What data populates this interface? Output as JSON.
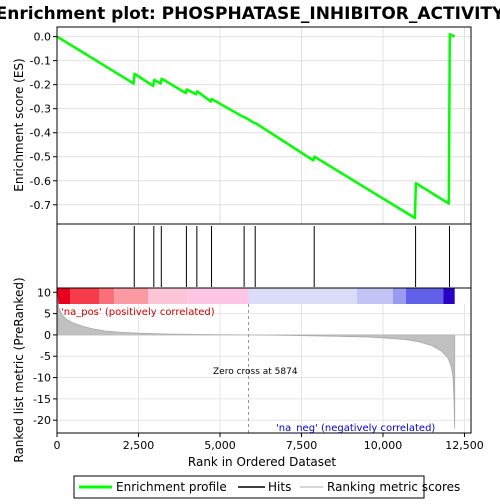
{
  "chart_data": {
    "type": "line",
    "title": "Enrichment plot: PHOSPHATASE_INHIBITOR_ACTIVITY",
    "panels": {
      "es": {
        "ylabel": "Enrichment score (ES)",
        "ylim": [
          -0.78,
          0.04
        ],
        "yticks": [
          0.0,
          -0.1,
          -0.2,
          -0.3,
          -0.4,
          -0.5,
          -0.6,
          -0.7
        ],
        "ytick_labels": [
          "0.0",
          "-0.1",
          "-0.2",
          "-0.3",
          "-0.4",
          "-0.5",
          "-0.6",
          "-0.7"
        ],
        "grid": true
      },
      "metric": {
        "ylabel": "Ranked list metric (PreRanked)",
        "ylim": [
          -23,
          11
        ],
        "yticks": [
          10,
          5,
          0,
          -5,
          -10,
          -15,
          -20
        ],
        "ytick_labels": [
          "10",
          "5",
          "0",
          "-5",
          "-10",
          "-15",
          "-20"
        ],
        "grid": true
      }
    },
    "xlabel": "Rank in Ordered Dataset",
    "xlim": [
      0,
      12700
    ],
    "xticks": [
      0,
      2500,
      5000,
      7500,
      10000,
      12500
    ],
    "xtick_labels": [
      "0",
      "2,500",
      "5,000",
      "7,500",
      "10,000",
      "12,500"
    ],
    "series": [
      {
        "name": "Enrichment profile",
        "color": "#00ff00",
        "x": [
          0,
          2350,
          2380,
          2950,
          2980,
          3180,
          3210,
          3950,
          3980,
          4270,
          4300,
          4720,
          4750,
          5720,
          5750,
          6060,
          6090,
          7860,
          7900,
          10980,
          11010,
          12020,
          12050,
          12200
        ],
        "y": [
          0.0,
          -0.195,
          -0.155,
          -0.205,
          -0.18,
          -0.195,
          -0.175,
          -0.235,
          -0.22,
          -0.24,
          -0.228,
          -0.27,
          -0.26,
          -0.335,
          -0.335,
          -0.36,
          -0.36,
          -0.515,
          -0.5,
          -0.755,
          -0.61,
          -0.695,
          0.01,
          0.0
        ]
      }
    ],
    "hits": [
      2370,
      2970,
      3200,
      3970,
      4290,
      4740,
      5740,
      6080,
      7890,
      11000,
      12040
    ],
    "metric_curve": {
      "x": [
        0,
        50,
        150,
        300,
        500,
        800,
        1100,
        1500,
        2000,
        2500,
        3000,
        3500,
        4000,
        5000,
        5874,
        7000,
        8500,
        9500,
        10200,
        10700,
        11100,
        11500,
        11800,
        12000,
        12100,
        12150,
        12180,
        12200
      ],
      "y": [
        9.5,
        6.5,
        4.8,
        3.6,
        2.8,
        2.0,
        1.4,
        0.9,
        0.6,
        0.4,
        0.3,
        0.2,
        0.15,
        0.05,
        0.0,
        -0.1,
        -0.3,
        -0.5,
        -0.8,
        -1.1,
        -1.6,
        -2.5,
        -3.8,
        -5.5,
        -7.5,
        -10.0,
        -15.0,
        -22.0
      ]
    },
    "colorbar": [
      {
        "x0": 0,
        "x1": 400,
        "color": "#e8001e"
      },
      {
        "x0": 400,
        "x1": 1300,
        "color": "#f63c4a"
      },
      {
        "x0": 1300,
        "x1": 1750,
        "color": "#f9707a"
      },
      {
        "x0": 1750,
        "x1": 2800,
        "color": "#fb9aa2"
      },
      {
        "x0": 2800,
        "x1": 4000,
        "color": "#fcc4d7"
      },
      {
        "x0": 4000,
        "x1": 5874,
        "color": "#ffc5e5"
      },
      {
        "x0": 5874,
        "x1": 9200,
        "color": "#dadcf8"
      },
      {
        "x0": 9200,
        "x1": 10300,
        "color": "#c3c3f5"
      },
      {
        "x0": 10300,
        "x1": 10700,
        "color": "#9a9af0"
      },
      {
        "x0": 10700,
        "x1": 11850,
        "color": "#6060e8"
      },
      {
        "x0": 11850,
        "x1": 12200,
        "color": "#2a00c6"
      }
    ],
    "zero_cross": 5874,
    "annotations": {
      "pos_label": "'na_pos' (positively correlated)",
      "neg_label": "'na_neg' (negatively correlated)",
      "zero_cross": "Zero cross at 5874"
    },
    "legend": {
      "placement": "bottom",
      "entries": [
        "Enrichment profile",
        "Hits",
        "Ranking metric scores"
      ]
    }
  }
}
